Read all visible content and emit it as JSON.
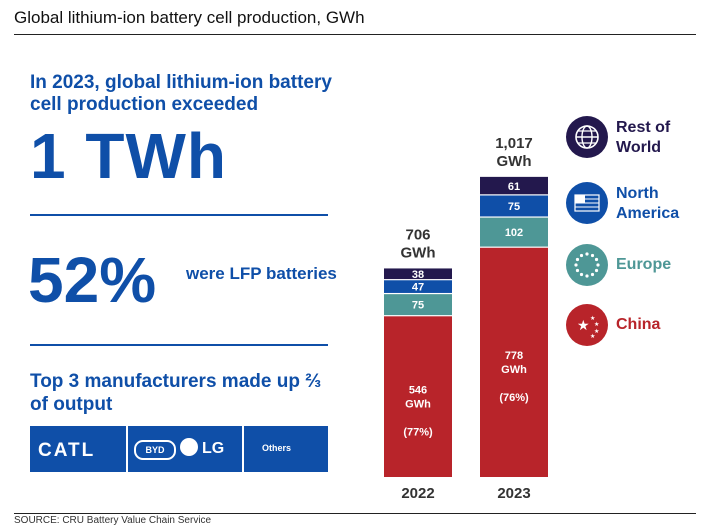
{
  "title": "Global lithium-ion battery cell production, GWh",
  "source": "SOURCE: CRU Battery Value Chain Service",
  "left_panel": {
    "headline": "In 2023, global lithium-ion battery cell production exceeded",
    "big_value": "1 TWh",
    "lfp_value": "52%",
    "lfp_text": "were LFP batteries",
    "top3_text": "Top 3 manufacturers made up ⅔ of output",
    "manufacturers": [
      "CATL",
      "BYD",
      "LG",
      "Others"
    ]
  },
  "colors": {
    "china": "#b8242a",
    "europe": "#4e9796",
    "north_america": "#0f4fa8",
    "rest_of_world": "#23184d",
    "accent": "#0f4fa8"
  },
  "chart_data": {
    "type": "bar",
    "stacked": true,
    "title": "Global lithium-ion battery cell production, GWh",
    "categories": [
      "2022",
      "2023"
    ],
    "totals": [
      "706\nGWh",
      "1,017\nGWh"
    ],
    "series": [
      {
        "name": "China",
        "values": [
          546,
          778
        ],
        "labels": [
          "546\nGWh\n\n(77%)",
          "778\nGWh\n\n(76%)"
        ],
        "color": "#b8242a"
      },
      {
        "name": "Europe",
        "values": [
          75,
          102
        ],
        "labels": [
          "75",
          "102"
        ],
        "color": "#4e9796"
      },
      {
        "name": "North America",
        "values": [
          47,
          75
        ],
        "labels": [
          "47",
          "75"
        ],
        "color": "#0f4fa8"
      },
      {
        "name": "Rest of World",
        "values": [
          38,
          61
        ],
        "labels": [
          "38",
          "61"
        ],
        "color": "#23184d"
      }
    ],
    "legend": [
      {
        "label": "Rest of World",
        "icon": "globe-icon",
        "color": "#23184d"
      },
      {
        "label": "North America",
        "icon": "us-flag-icon",
        "color": "#0f4fa8"
      },
      {
        "label": "Europe",
        "icon": "eu-stars-icon",
        "color": "#4e9796"
      },
      {
        "label": "China",
        "icon": "china-flag-icon",
        "color": "#b8242a"
      }
    ]
  }
}
